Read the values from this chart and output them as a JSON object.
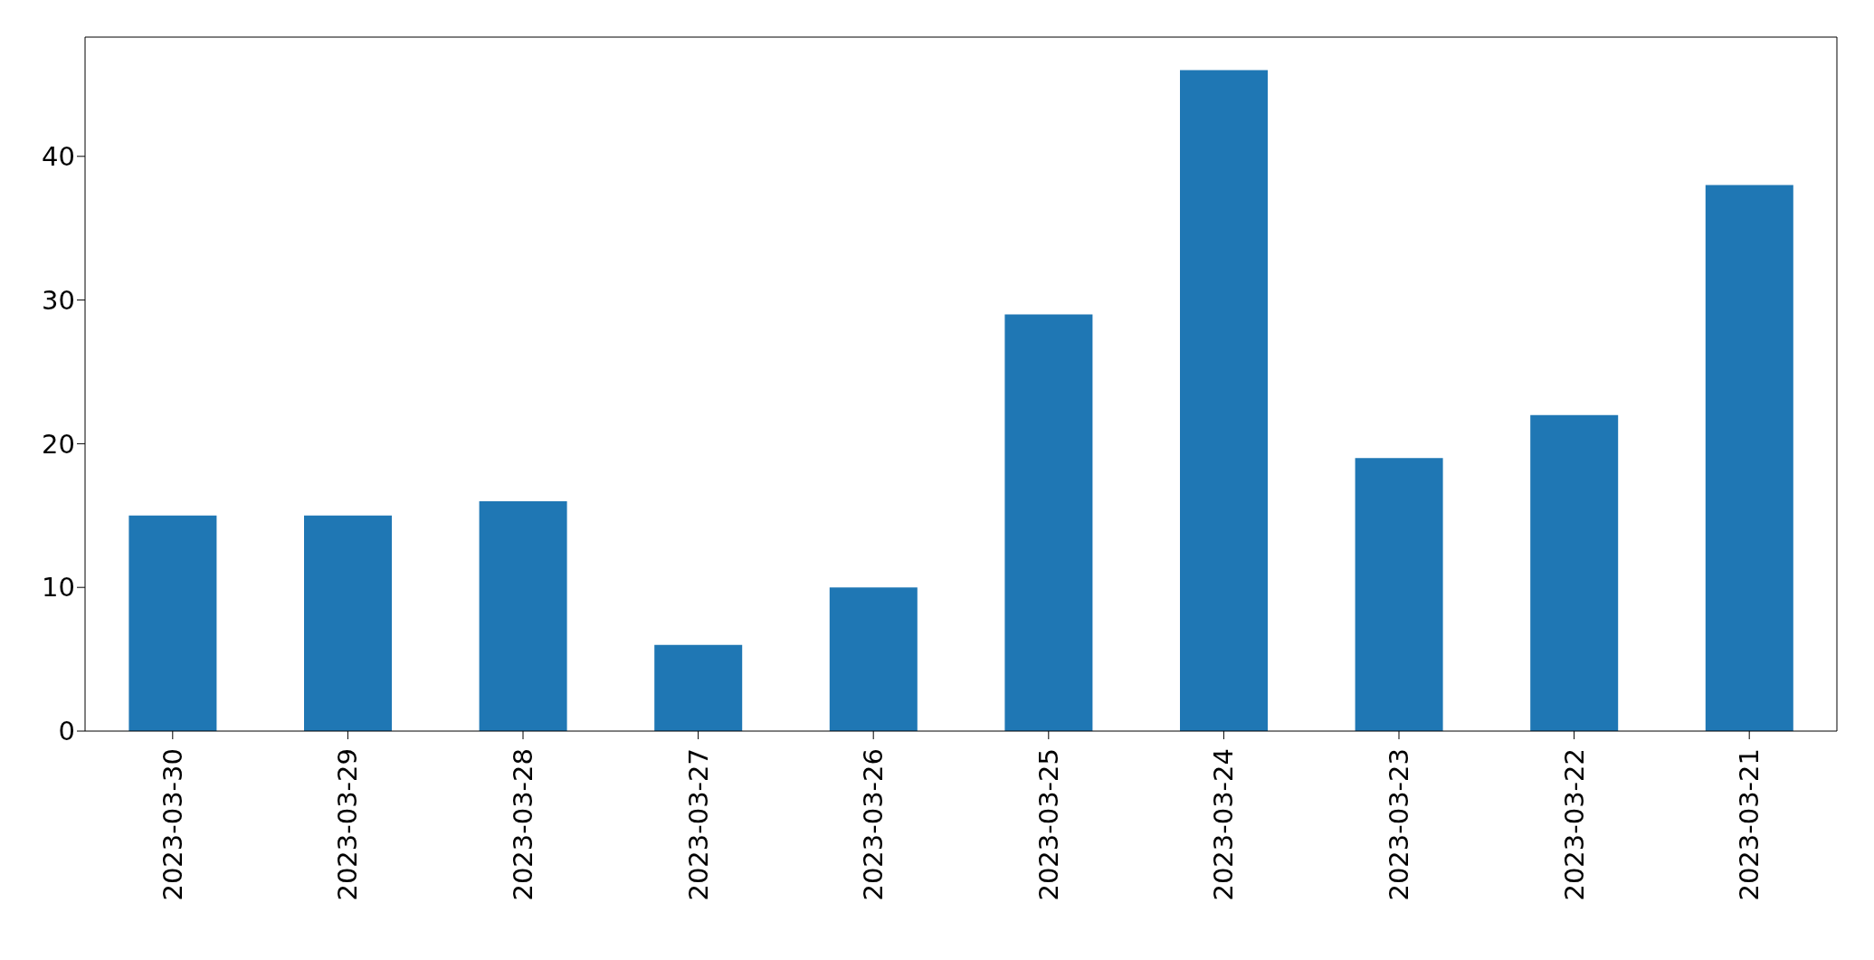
{
  "chart_data": {
    "type": "bar",
    "categories": [
      "2023-03-30",
      "2023-03-29",
      "2023-03-28",
      "2023-03-27",
      "2023-03-26",
      "2023-03-25",
      "2023-03-24",
      "2023-03-23",
      "2023-03-22",
      "2023-03-21"
    ],
    "values": [
      15,
      15,
      16,
      6,
      10,
      29,
      46,
      19,
      22,
      38
    ],
    "color": "#1f77b4",
    "ylim": [
      0,
      48.3
    ],
    "yticks": [
      0,
      10,
      20,
      30,
      40
    ],
    "grid": false,
    "legend": false
  }
}
